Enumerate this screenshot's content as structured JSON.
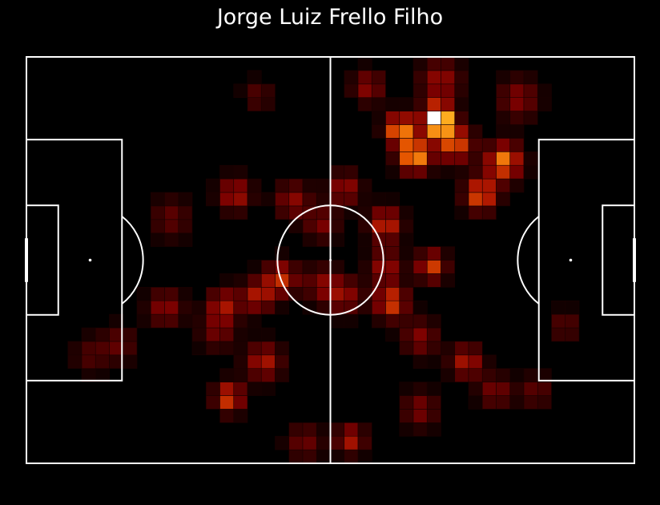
{
  "header": {
    "title": "Jorge Luiz Frello Filho"
  },
  "colors": {
    "background": "#000000",
    "pitch_lines": "#ffffff",
    "cell_edge": "#1a0000",
    "colormap": [
      "#000000",
      "#3a0000",
      "#780000",
      "#b01800",
      "#e85a00",
      "#ffb020",
      "#ffff80",
      "#ffffff"
    ]
  },
  "chart_data": {
    "type": "heatmap",
    "title": "Jorge Luiz Frello Filho",
    "x_range": [
      0,
      105
    ],
    "y_range": [
      0,
      68
    ],
    "grid": {
      "cols": 44,
      "rows": 30
    },
    "pitch": {
      "length": 105,
      "width": 68,
      "orientation": "horizontal"
    },
    "hotspots": [
      {
        "x": 71.0,
        "y": 57.5,
        "intensity": 1.0,
        "spread": 1.8
      },
      {
        "x": 64.5,
        "y": 56.0,
        "intensity": 0.65,
        "spread": 1.8
      },
      {
        "x": 67.0,
        "y": 51.5,
        "intensity": 0.7,
        "spread": 2.0
      },
      {
        "x": 74.0,
        "y": 53.5,
        "intensity": 0.55,
        "spread": 2.2
      },
      {
        "x": 82.5,
        "y": 50.5,
        "intensity": 0.62,
        "spread": 2.2
      },
      {
        "x": 78.5,
        "y": 45.0,
        "intensity": 0.58,
        "spread": 2.0
      },
      {
        "x": 71.5,
        "y": 64.0,
        "intensity": 0.35,
        "spread": 2.5
      },
      {
        "x": 59.0,
        "y": 63.0,
        "intensity": 0.32,
        "spread": 2.0
      },
      {
        "x": 85.0,
        "y": 61.0,
        "intensity": 0.3,
        "spread": 2.5
      },
      {
        "x": 62.0,
        "y": 40.0,
        "intensity": 0.48,
        "spread": 2.0
      },
      {
        "x": 70.0,
        "y": 33.0,
        "intensity": 0.5,
        "spread": 1.8
      },
      {
        "x": 63.0,
        "y": 27.0,
        "intensity": 0.52,
        "spread": 2.0
      },
      {
        "x": 62.0,
        "y": 33.0,
        "intensity": 0.35,
        "spread": 2.0
      },
      {
        "x": 55.0,
        "y": 46.0,
        "intensity": 0.35,
        "spread": 2.0
      },
      {
        "x": 55.0,
        "y": 28.0,
        "intensity": 0.32,
        "spread": 2.2
      },
      {
        "x": 68.0,
        "y": 21.0,
        "intensity": 0.3,
        "spread": 2.2
      },
      {
        "x": 76.0,
        "y": 17.0,
        "intensity": 0.4,
        "spread": 2.0
      },
      {
        "x": 81.0,
        "y": 12.0,
        "intensity": 0.28,
        "spread": 2.0
      },
      {
        "x": 68.0,
        "y": 9.0,
        "intensity": 0.28,
        "spread": 2.2
      },
      {
        "x": 88.0,
        "y": 12.0,
        "intensity": 0.22,
        "spread": 2.0
      },
      {
        "x": 93.0,
        "y": 23.0,
        "intensity": 0.22,
        "spread": 1.8
      },
      {
        "x": 56.0,
        "y": 4.0,
        "intensity": 0.4,
        "spread": 1.8
      },
      {
        "x": 48.0,
        "y": 3.5,
        "intensity": 0.25,
        "spread": 2.2
      },
      {
        "x": 46.0,
        "y": 44.0,
        "intensity": 0.32,
        "spread": 2.2
      },
      {
        "x": 51.0,
        "y": 40.0,
        "intensity": 0.28,
        "spread": 2.0
      },
      {
        "x": 36.0,
        "y": 45.0,
        "intensity": 0.4,
        "spread": 2.0
      },
      {
        "x": 44.0,
        "y": 31.0,
        "intensity": 0.45,
        "spread": 2.0
      },
      {
        "x": 40.0,
        "y": 28.0,
        "intensity": 0.4,
        "spread": 2.0
      },
      {
        "x": 51.0,
        "y": 30.0,
        "intensity": 0.28,
        "spread": 2.2
      },
      {
        "x": 34.0,
        "y": 26.5,
        "intensity": 0.38,
        "spread": 2.0
      },
      {
        "x": 33.0,
        "y": 22.0,
        "intensity": 0.25,
        "spread": 2.2
      },
      {
        "x": 41.0,
        "y": 17.0,
        "intensity": 0.4,
        "spread": 2.2
      },
      {
        "x": 35.0,
        "y": 11.0,
        "intensity": 0.52,
        "spread": 1.8
      },
      {
        "x": 24.0,
        "y": 26.0,
        "intensity": 0.32,
        "spread": 2.2
      },
      {
        "x": 25.0,
        "y": 41.0,
        "intensity": 0.22,
        "spread": 2.5
      },
      {
        "x": 16.0,
        "y": 20.0,
        "intensity": 0.22,
        "spread": 2.2
      },
      {
        "x": 40.0,
        "y": 61.5,
        "intensity": 0.2,
        "spread": 1.8
      },
      {
        "x": 11.0,
        "y": 18.0,
        "intensity": 0.18,
        "spread": 2.2
      }
    ]
  }
}
